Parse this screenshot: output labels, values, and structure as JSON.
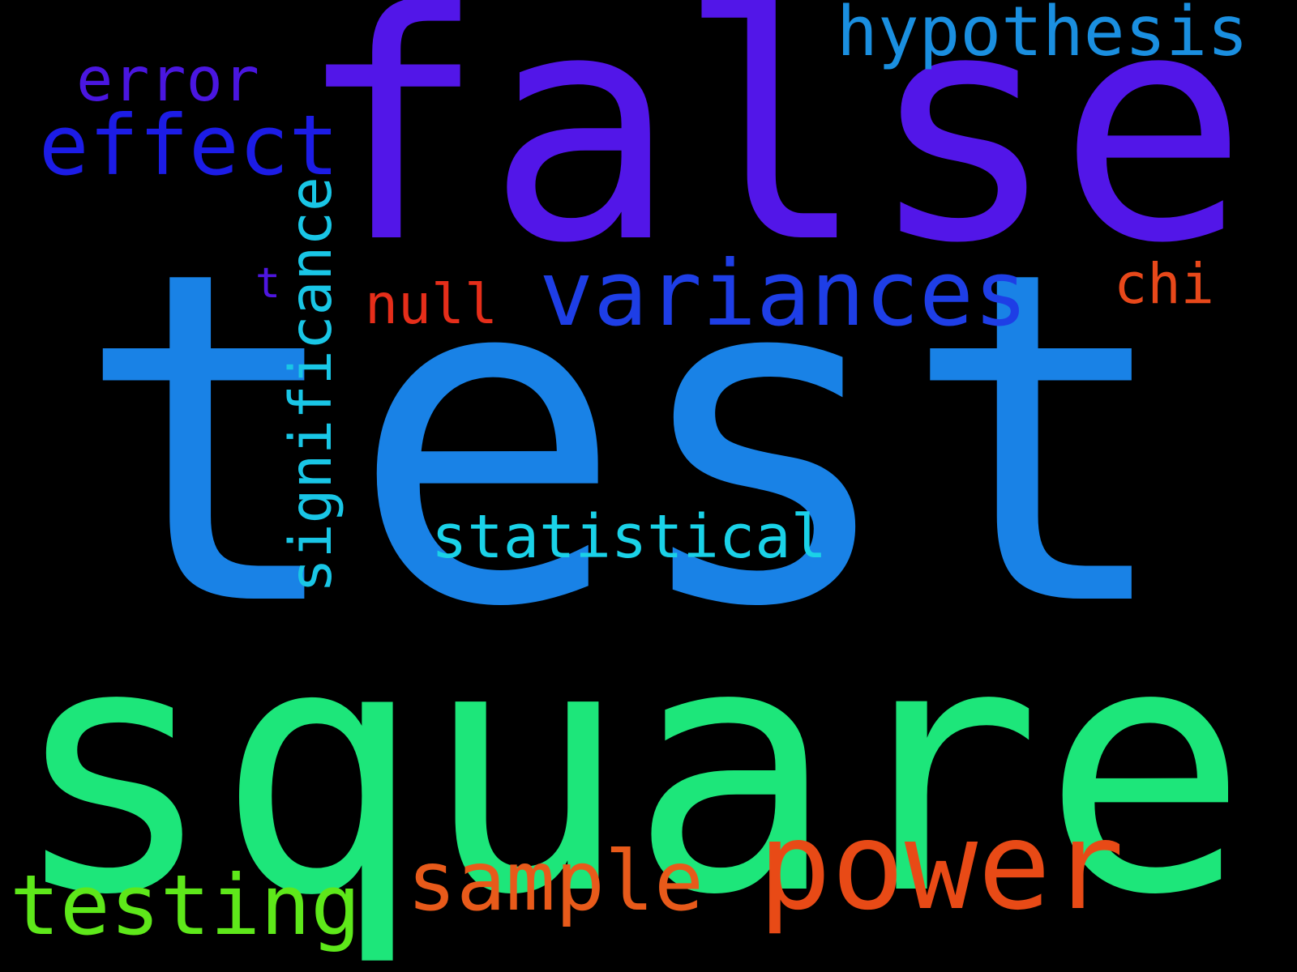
{
  "background_color": "#000000",
  "words": [
    {
      "id": "test",
      "text": "test",
      "color": "#1982e6"
    },
    {
      "id": "square",
      "text": "square",
      "color": "#1de67a"
    },
    {
      "id": "false",
      "text": "false",
      "color": "#5216e8"
    },
    {
      "id": "power",
      "text": "power",
      "color": "#e84a16"
    },
    {
      "id": "variances",
      "text": "variances",
      "color": "#1e3ee6"
    },
    {
      "id": "hypothesis",
      "text": "hypothesis",
      "color": "#1a8fe0"
    },
    {
      "id": "effect",
      "text": "effect",
      "color": "#1c1ce6"
    },
    {
      "id": "error",
      "text": "error",
      "color": "#4a16e0"
    },
    {
      "id": "significance",
      "text": "significance",
      "color": "#19c6e6"
    },
    {
      "id": "statistical",
      "text": "statistical",
      "color": "#1ad2e8"
    },
    {
      "id": "sample",
      "text": "sample",
      "color": "#e85a1a"
    },
    {
      "id": "testing",
      "text": "testing",
      "color": "#5ee81a"
    },
    {
      "id": "null",
      "text": "null",
      "color": "#e62e1a"
    },
    {
      "id": "chi",
      "text": "chi",
      "color": "#e8481a"
    },
    {
      "id": "t",
      "text": "t",
      "color": "#4e16e0"
    }
  ]
}
